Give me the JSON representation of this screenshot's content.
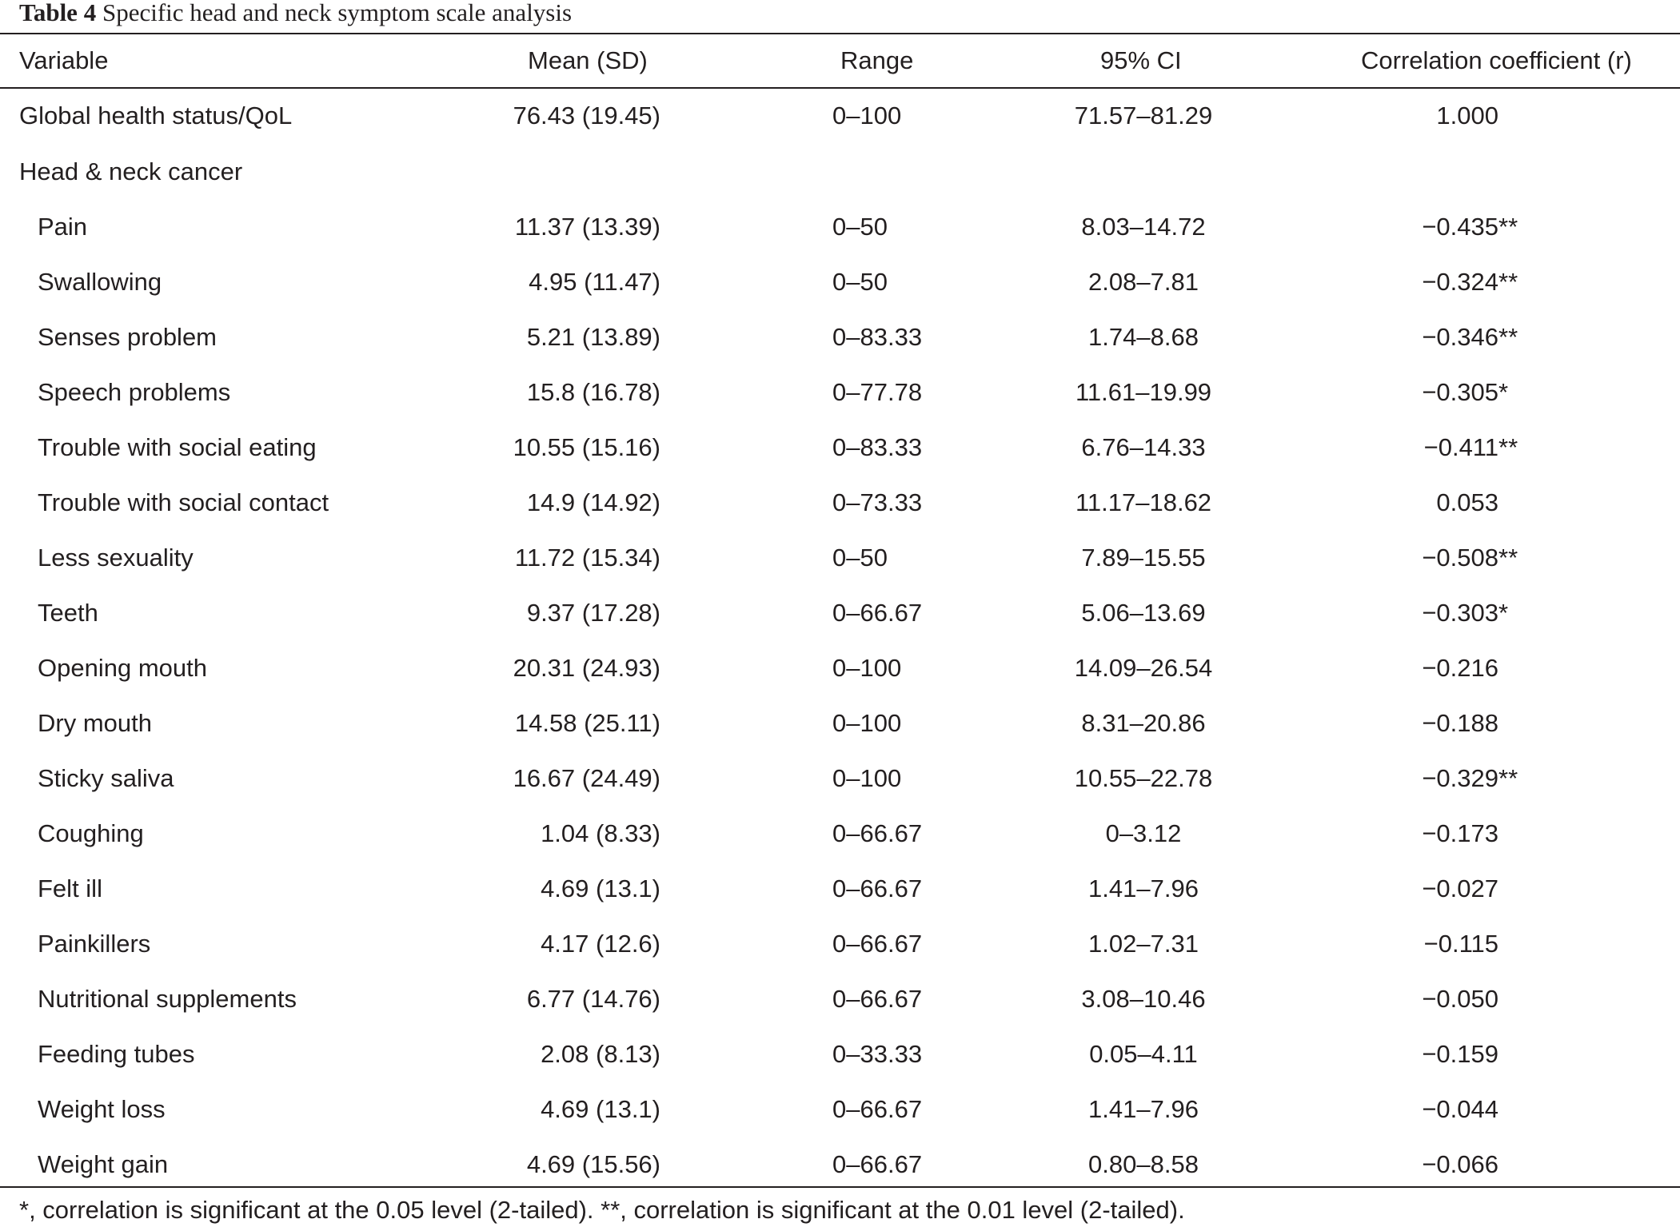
{
  "caption": {
    "label": "Table 4",
    "title": "Specific head and neck symptom scale analysis"
  },
  "columns": {
    "variable": "Variable",
    "mean_sd": "Mean (SD)",
    "range": "Range",
    "ci": "95% CI",
    "r": "Correlation coefficient (r)"
  },
  "rows": [
    {
      "variable": "Global health status/QoL",
      "mean_sd": "76.43 (19.45)",
      "range": "0–100",
      "ci": "71.57–81.29",
      "r": "1.000",
      "star": ""
    },
    {
      "variable": "Head & neck cancer",
      "mean_sd": "",
      "range": "",
      "ci": "",
      "r": "",
      "star": ""
    },
    {
      "variable": "Pain",
      "mean_sd": "11.37 (13.39)",
      "range": "0–50",
      "ci": "8.03–14.72",
      "r": "−0.435",
      "star": "**"
    },
    {
      "variable": "Swallowing",
      "mean_sd": "4.95 (11.47)",
      "range": "0–50",
      "ci": "2.08–7.81",
      "r": "−0.324",
      "star": "**"
    },
    {
      "variable": "Senses problem",
      "mean_sd": "5.21 (13.89)",
      "range": "0–83.33",
      "ci": "1.74–8.68",
      "r": "−0.346",
      "star": "**"
    },
    {
      "variable": "Speech problems",
      "mean_sd": "15.8 (16.78)",
      "range": "0–77.78",
      "ci": "11.61–19.99",
      "r": "−0.305",
      "star": "*"
    },
    {
      "variable": "Trouble with social eating",
      "mean_sd": "10.55 (15.16)",
      "range": "0–83.33",
      "ci": "6.76–14.33",
      "r": "−0.411",
      "star": "**"
    },
    {
      "variable": "Trouble with social contact",
      "mean_sd": "14.9 (14.92)",
      "range": "0–73.33",
      "ci": "11.17–18.62",
      "r": "0.053",
      "star": ""
    },
    {
      "variable": "Less sexuality",
      "mean_sd": "11.72 (15.34)",
      "range": "0–50",
      "ci": "7.89–15.55",
      "r": "−0.508",
      "star": "**"
    },
    {
      "variable": "Teeth",
      "mean_sd": "9.37 (17.28)",
      "range": "0–66.67",
      "ci": "5.06–13.69",
      "r": "−0.303",
      "star": "*"
    },
    {
      "variable": "Opening mouth",
      "mean_sd": "20.31 (24.93)",
      "range": "0–100",
      "ci": "14.09–26.54",
      "r": "−0.216",
      "star": ""
    },
    {
      "variable": "Dry mouth",
      "mean_sd": "14.58 (25.11)",
      "range": "0–100",
      "ci": "8.31–20.86",
      "r": "−0.188",
      "star": ""
    },
    {
      "variable": "Sticky saliva",
      "mean_sd": "16.67 (24.49)",
      "range": "0–100",
      "ci": "10.55–22.78",
      "r": "−0.329",
      "star": "**"
    },
    {
      "variable": "Coughing",
      "mean_sd": "1.04 (8.33)",
      "range": "0–66.67",
      "ci": "0–3.12",
      "r": "−0.173",
      "star": ""
    },
    {
      "variable": "Felt ill",
      "mean_sd": "4.69 (13.1)",
      "range": "0–66.67",
      "ci": "1.41–7.96",
      "r": "−0.027",
      "star": ""
    },
    {
      "variable": "Painkillers",
      "mean_sd": "4.17 (12.6)",
      "range": "0–66.67",
      "ci": "1.02–7.31",
      "r": "−0.115",
      "star": ""
    },
    {
      "variable": "Nutritional supplements",
      "mean_sd": "6.77 (14.76)",
      "range": "0–66.67",
      "ci": "3.08–10.46",
      "r": "−0.050",
      "star": ""
    },
    {
      "variable": "Feeding tubes",
      "mean_sd": "2.08 (8.13)",
      "range": "0–33.33",
      "ci": "0.05–4.11",
      "r": "−0.159",
      "star": ""
    },
    {
      "variable": "Weight loss",
      "mean_sd": "4.69 (13.1)",
      "range": "0–66.67",
      "ci": "1.41–7.96",
      "r": "−0.044",
      "star": ""
    },
    {
      "variable": "Weight gain",
      "mean_sd": "4.69 (15.56)",
      "range": "0–66.67",
      "ci": "0.80–8.58",
      "r": "−0.066",
      "star": ""
    }
  ],
  "footnote": "*, correlation is significant at the 0.05 level (2-tailed). **, correlation is significant at the 0.01 level (2-tailed)."
}
